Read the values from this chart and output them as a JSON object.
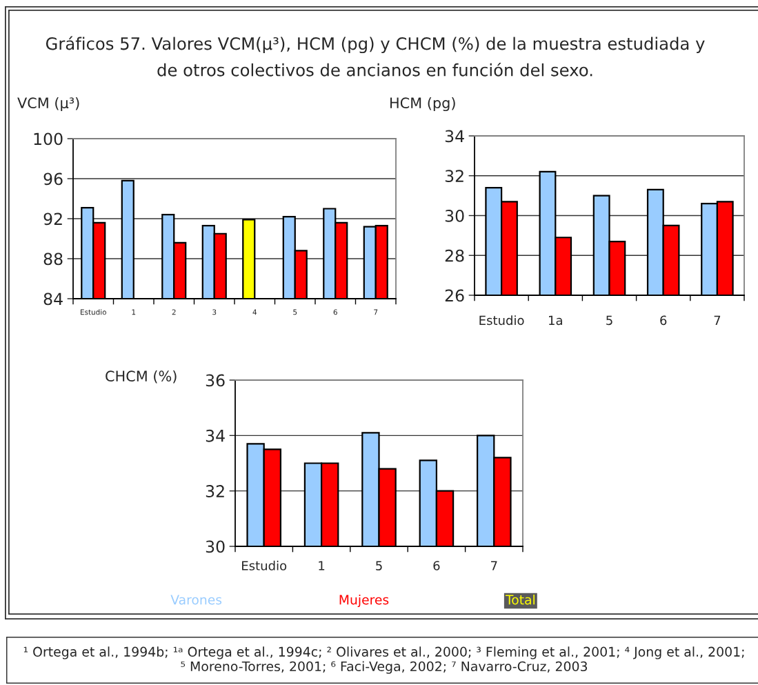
{
  "chart_data": [
    {
      "type": "bar",
      "title": "Gráficos 57. Valores VCM(μ³), HCM (pg) y CHCM (%) de la muestra estudiada y\nde otros colectivos de ancianos en función del sexo.",
      "ylabel": "VCM (μ³)",
      "categories": [
        "Estudio",
        "1",
        "2",
        "3",
        "4",
        "5",
        "6",
        "7"
      ],
      "series": [
        {
          "name": "Varones",
          "color": "#99ccff",
          "values": [
            93.1,
            95.8,
            92.4,
            91.3,
            null,
            92.2,
            93.0,
            91.2
          ]
        },
        {
          "name": "Mujeres",
          "color": "#ff0000",
          "values": [
            91.6,
            null,
            89.6,
            90.5,
            null,
            88.8,
            91.6,
            91.3
          ]
        },
        {
          "name": "Total",
          "color": "#ffff00",
          "values": [
            null,
            null,
            null,
            null,
            91.9,
            null,
            null,
            null
          ]
        }
      ],
      "ylim": [
        84,
        100
      ],
      "yticks": [
        84,
        88,
        92,
        96,
        100
      ],
      "grid": "y",
      "legend": "bottom"
    },
    {
      "type": "bar",
      "ylabel": "HCM (pg)",
      "categories": [
        "Estudio",
        "1a",
        "5",
        "6",
        "7"
      ],
      "series": [
        {
          "color": "#99ccff",
          "values": [
            31.4,
            32.2,
            31.0,
            31.3,
            30.6
          ]
        },
        {
          "color": "#ff0000",
          "values": [
            30.7,
            28.9,
            28.7,
            29.5,
            30.7
          ]
        }
      ],
      "ylim": [
        26,
        34
      ],
      "yticks": [
        26,
        28,
        30,
        32,
        34
      ],
      "grid": "y"
    },
    {
      "type": "bar",
      "ylabel": "CHCM (%)",
      "categories": [
        "Estudio",
        "1",
        "5",
        "6",
        "7"
      ],
      "series": [
        {
          "color": "#99ccff",
          "values": [
            33.7,
            33.0,
            34.1,
            33.1,
            34.0
          ]
        },
        {
          "color": "#ff0000",
          "values": [
            33.5,
            33.0,
            32.8,
            32.0,
            33.2
          ]
        }
      ],
      "ylim": [
        30,
        36
      ],
      "yticks": [
        30,
        32,
        34,
        36
      ],
      "grid": "y",
      "annotations": [
        "¹ Ortega et al., 1994b; ¹ᵃ Ortega et al., 1994c; ² Olivares et al., 2000; ³ Fleming et al., 2001; ⁴ Jong et al., 2001;\n⁵ Moreno-Torres, 2001; ⁶ Faci-Vega, 2002; ⁷ Navarro-Cruz, 2003"
      ]
    }
  ]
}
